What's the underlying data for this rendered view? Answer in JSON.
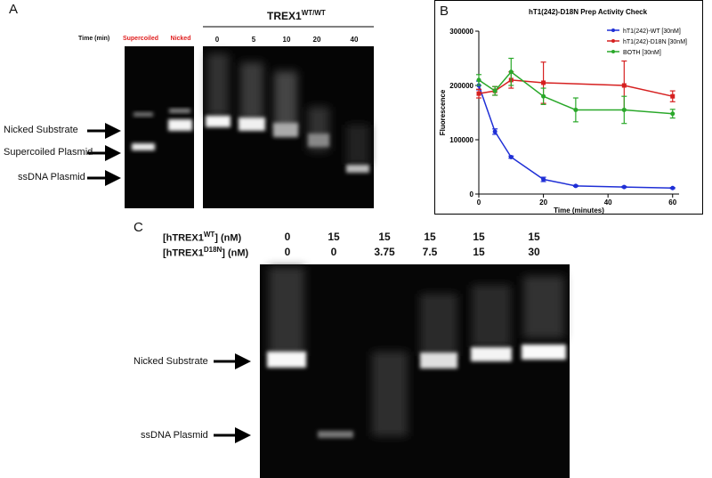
{
  "panel_a": {
    "label": "A",
    "header": "TREX1",
    "header_sup": "WT/WT",
    "time_label": "Time (min)",
    "lanes": [
      "Supercoiled",
      "Nicked",
      "0",
      "5",
      "10",
      "20",
      "40"
    ],
    "markers": [
      "Nicked Substrate",
      "Supercoiled Plasmid",
      "ssDNA Plasmid"
    ]
  },
  "panel_b": {
    "label": "B",
    "chart_data": {
      "type": "scatter",
      "title": "hT1(242)-D18N Prep Activity Check",
      "x_label": "Time (minutes)",
      "y_label": "Fluorescence",
      "xlim": [
        0,
        62
      ],
      "ylim": [
        0,
        300000
      ],
      "xticks": [
        0,
        20,
        40,
        60
      ],
      "yticks": [
        0,
        100000,
        200000,
        300000
      ],
      "legend": "top-right",
      "series": [
        {
          "name": "hT1(242)-WT [30nM]",
          "color": "#1f2fd6",
          "x": [
            0,
            5,
            10,
            20,
            30,
            45,
            60
          ],
          "values": [
            200000,
            115000,
            68000,
            27000,
            15000,
            13000,
            11000
          ],
          "errors": [
            8000,
            5000,
            2000,
            4000,
            1000,
            1000,
            1000
          ]
        },
        {
          "name": "hT1(242)-D18N [30nM]",
          "color": "#d62020",
          "x": [
            0,
            5,
            10,
            20,
            45,
            60
          ],
          "values": [
            185000,
            190000,
            210000,
            205000,
            200000,
            180000
          ],
          "errors": [
            8000,
            8000,
            15000,
            38000,
            45000,
            10000
          ]
        },
        {
          "name": "BOTH [30nM]",
          "color": "#2aa82a",
          "x": [
            0,
            5,
            10,
            20,
            30,
            45,
            60
          ],
          "values": [
            210000,
            190000,
            225000,
            180000,
            155000,
            155000,
            148000
          ],
          "errors": [
            10000,
            8000,
            25000,
            15000,
            22000,
            25000,
            8000
          ]
        }
      ]
    }
  },
  "panel_c": {
    "label": "C",
    "rows": [
      {
        "head": "[hTREX1",
        "sup": "WT",
        "tail": "] (nM)",
        "values": [
          "0",
          "15",
          "15",
          "15",
          "15",
          "15"
        ]
      },
      {
        "head": "[hTREX1",
        "sup": "D18N",
        "tail": "] (nM)",
        "values": [
          "0",
          "0",
          "3.75",
          "7.5",
          "15",
          "30"
        ]
      }
    ],
    "markers": [
      "Nicked Substrate",
      "ssDNA Plasmid"
    ]
  }
}
